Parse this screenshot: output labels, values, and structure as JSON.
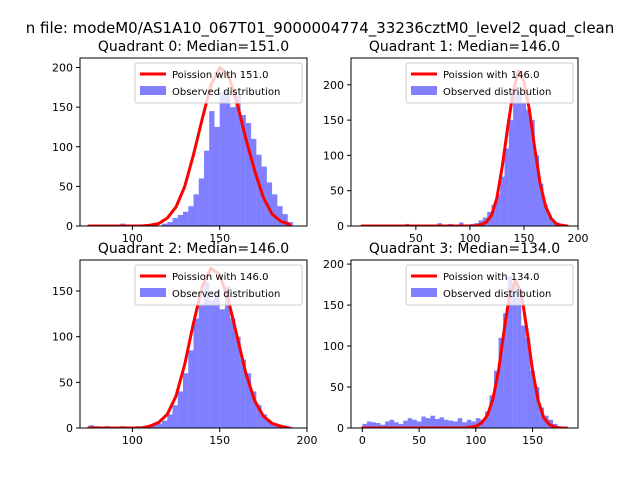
{
  "figure": {
    "suptitle": "n file: modeM0/AS1A10_067T01_9000004774_33236cztM0_level2_quad_clean"
  },
  "chart_data": [
    {
      "type": "bar",
      "title": "Quadrant 0: Median=151.0",
      "xlim": [
        70,
        200
      ],
      "ylim": [
        0,
        212
      ],
      "xticks": [
        100,
        150
      ],
      "yticks": [
        0,
        50,
        100,
        150,
        200
      ],
      "legend_location": "top-right",
      "series": [
        {
          "name": "Poission with 151.0",
          "kind": "line",
          "color": "#ff0000",
          "x": [
            75,
            80,
            85,
            90,
            95,
            100,
            105,
            110,
            115,
            120,
            125,
            130,
            135,
            140,
            145,
            150,
            155,
            160,
            165,
            170,
            175,
            180,
            185,
            190
          ],
          "y": [
            0,
            0,
            0,
            0,
            0,
            0,
            0,
            1,
            3,
            10,
            24,
            50,
            90,
            135,
            178,
            200,
            190,
            155,
            110,
            70,
            36,
            15,
            6,
            2
          ]
        },
        {
          "name": "Observed distribution",
          "kind": "histogram",
          "color": "#0000ff",
          "opacity": 0.5,
          "bin_width": 3,
          "x": [
            75,
            78,
            81,
            84,
            87,
            90,
            93,
            96,
            99,
            102,
            105,
            108,
            111,
            114,
            117,
            120,
            123,
            126,
            129,
            132,
            135,
            138,
            141,
            144,
            147,
            150,
            153,
            156,
            159,
            162,
            165,
            168,
            171,
            174,
            177,
            180,
            183,
            186,
            189
          ],
          "y": [
            0,
            0,
            0,
            0,
            0,
            0,
            3,
            2,
            1,
            2,
            0,
            2,
            1,
            0,
            3,
            5,
            10,
            14,
            18,
            25,
            40,
            60,
            95,
            145,
            125,
            168,
            170,
            150,
            165,
            140,
            130,
            110,
            90,
            75,
            55,
            40,
            25,
            15,
            5
          ]
        }
      ]
    },
    {
      "type": "bar",
      "title": "Quadrant 1: Median=146.0",
      "xlim": [
        -10,
        200
      ],
      "ylim": [
        0,
        238
      ],
      "xticks": [
        50,
        100,
        150,
        200
      ],
      "yticks": [
        0,
        50,
        100,
        150,
        200
      ],
      "legend_location": "top-right",
      "series": [
        {
          "name": "Poission with 146.0",
          "kind": "line",
          "color": "#ff0000",
          "x": [
            0,
            20,
            40,
            60,
            80,
            95,
            100,
            105,
            110,
            115,
            120,
            125,
            130,
            135,
            140,
            145,
            150,
            155,
            160,
            165,
            170,
            175,
            180,
            185,
            190
          ],
          "y": [
            0,
            0,
            0,
            0,
            0,
            0,
            0,
            0,
            2,
            5,
            15,
            40,
            85,
            140,
            190,
            220,
            205,
            165,
            110,
            60,
            28,
            11,
            3,
            1,
            0
          ]
        },
        {
          "name": "Observed distribution",
          "kind": "histogram",
          "color": "#0000ff",
          "opacity": 0.5,
          "bin_width": 4,
          "x": [
            0,
            20,
            40,
            60,
            70,
            80,
            90,
            100,
            104,
            108,
            112,
            116,
            120,
            124,
            128,
            132,
            136,
            140,
            144,
            148,
            152,
            156,
            160,
            164,
            168,
            172,
            176,
            180,
            184
          ],
          "y": [
            2,
            1,
            3,
            2,
            4,
            3,
            5,
            3,
            4,
            8,
            12,
            20,
            30,
            45,
            70,
            110,
            150,
            195,
            190,
            175,
            165,
            150,
            100,
            60,
            30,
            15,
            6,
            3,
            1
          ]
        }
      ]
    },
    {
      "type": "bar",
      "title": "Quadrant 2: Median=146.0",
      "xlim": [
        70,
        200
      ],
      "ylim": [
        0,
        184
      ],
      "xticks": [
        100,
        150,
        200
      ],
      "yticks": [
        0,
        50,
        100,
        150
      ],
      "legend_location": "top-right",
      "series": [
        {
          "name": "Poission with 146.0",
          "kind": "line",
          "color": "#ff0000",
          "x": [
            75,
            80,
            85,
            90,
            95,
            100,
            105,
            110,
            115,
            120,
            125,
            130,
            135,
            140,
            145,
            150,
            155,
            160,
            165,
            170,
            175,
            180,
            185,
            190
          ],
          "y": [
            0,
            0,
            0,
            0,
            0,
            0,
            0,
            2,
            6,
            15,
            35,
            70,
            115,
            155,
            175,
            168,
            140,
            100,
            60,
            30,
            13,
            5,
            2,
            0
          ]
        },
        {
          "name": "Observed distribution",
          "kind": "histogram",
          "color": "#0000ff",
          "opacity": 0.5,
          "bin_width": 3,
          "x": [
            75,
            78,
            81,
            84,
            87,
            90,
            93,
            96,
            99,
            102,
            105,
            108,
            111,
            114,
            117,
            120,
            123,
            126,
            129,
            132,
            135,
            138,
            141,
            144,
            147,
            150,
            153,
            156,
            159,
            162,
            165,
            168,
            171,
            174,
            177,
            180,
            183,
            186,
            189
          ],
          "y": [
            3,
            2,
            1,
            2,
            0,
            1,
            2,
            1,
            0,
            2,
            1,
            2,
            3,
            5,
            8,
            15,
            25,
            40,
            60,
            85,
            120,
            135,
            160,
            140,
            150,
            130,
            155,
            120,
            100,
            75,
            60,
            40,
            25,
            15,
            8,
            5,
            3,
            1,
            1
          ]
        }
      ]
    },
    {
      "type": "bar",
      "title": "Quadrant 3: Median=134.0",
      "xlim": [
        -10,
        190
      ],
      "ylim": [
        0,
        205
      ],
      "xticks": [
        0,
        50,
        100,
        150
      ],
      "yticks": [
        0,
        50,
        100,
        150,
        200
      ],
      "legend_location": "top-right",
      "series": [
        {
          "name": "Poission with 134.0",
          "kind": "line",
          "color": "#ff0000",
          "x": [
            0,
            20,
            40,
            60,
            80,
            90,
            100,
            105,
            110,
            115,
            120,
            125,
            130,
            135,
            140,
            145,
            150,
            155,
            160,
            165,
            170,
            175,
            180
          ],
          "y": [
            0,
            0,
            0,
            0,
            0,
            0,
            2,
            6,
            15,
            35,
            70,
            120,
            165,
            180,
            165,
            120,
            70,
            33,
            12,
            4,
            1,
            0,
            0
          ]
        },
        {
          "name": "Observed distribution",
          "kind": "histogram",
          "color": "#0000ff",
          "opacity": 0.5,
          "bin_width": 4,
          "x": [
            0,
            4,
            8,
            12,
            16,
            20,
            24,
            28,
            32,
            36,
            40,
            44,
            48,
            52,
            56,
            60,
            64,
            68,
            72,
            76,
            80,
            84,
            88,
            92,
            96,
            100,
            104,
            108,
            112,
            116,
            120,
            124,
            128,
            132,
            136,
            140,
            144,
            148,
            152,
            156,
            160,
            164,
            168,
            172
          ],
          "y": [
            5,
            8,
            7,
            6,
            4,
            8,
            10,
            7,
            5,
            9,
            12,
            10,
            8,
            14,
            12,
            15,
            11,
            13,
            10,
            9,
            8,
            12,
            7,
            10,
            8,
            12,
            10,
            20,
            40,
            70,
            110,
            140,
            185,
            175,
            170,
            125,
            110,
            70,
            50,
            25,
            15,
            10,
            5,
            2
          ]
        }
      ]
    }
  ]
}
